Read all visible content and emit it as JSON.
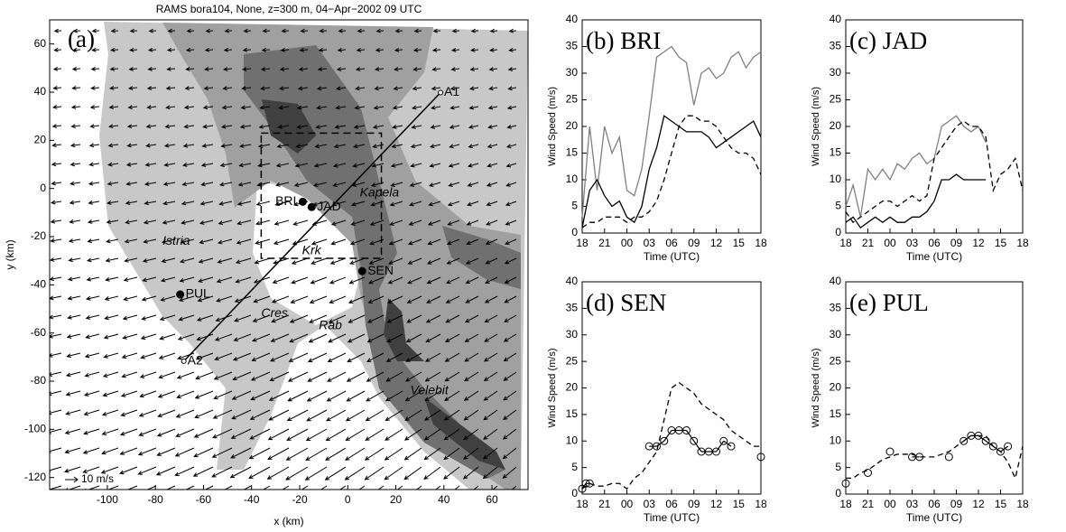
{
  "chart_data": [
    {
      "type": "map",
      "title": "RAMS bora104, None, z=300 m, 04−Apr−2002 09 UTC",
      "panel_label": "(a)",
      "xlabel": "x (km)",
      "ylabel": "y (km)",
      "xlim": [
        -124,
        75
      ],
      "ylim": [
        -125,
        70
      ],
      "xticks": [
        -100,
        -80,
        -60,
        -40,
        -20,
        0,
        20,
        40,
        60
      ],
      "yticks": [
        -120,
        -100,
        -80,
        -60,
        -40,
        -20,
        0,
        20,
        40,
        60
      ],
      "stations": [
        {
          "name": "BRI",
          "x": -18.7,
          "y": -5.5
        },
        {
          "name": "JAD",
          "x": -15,
          "y": -7.7
        },
        {
          "name": "SEN",
          "x": 6,
          "y": -34.3
        },
        {
          "name": "PUL",
          "x": -69.7,
          "y": -44
        }
      ],
      "section": [
        {
          "name": "A1",
          "x": 38.6,
          "y": 39.8
        },
        {
          "name": "A2",
          "x": -68.2,
          "y": -71.7
        }
      ],
      "place_labels": [
        {
          "text": "Istria",
          "x": -77,
          "y": -22
        },
        {
          "text": "Kapela",
          "x": 5,
          "y": -2
        },
        {
          "text": "Krk",
          "x": -19,
          "y": -26
        },
        {
          "text": "Cres",
          "x": -36,
          "y": -52
        },
        {
          "text": "Rab",
          "x": -12,
          "y": -57
        },
        {
          "text": "Velebit",
          "x": 26,
          "y": -84
        }
      ],
      "box": {
        "xlim": [
          -36,
          14
        ],
        "ylim": [
          -29,
          23
        ]
      },
      "vector_key": "10 m/s"
    },
    {
      "type": "line",
      "panel_label": "(b) BRI",
      "xlabel": "Time (UTC)",
      "ylabel": "Wind Speed (m/s)",
      "xlim": [
        0,
        24
      ],
      "ylim": [
        0,
        40
      ],
      "xticks": [
        {
          "value": 0,
          "label": "18"
        },
        {
          "value": 3,
          "label": "21"
        },
        {
          "value": 6,
          "label": "00"
        },
        {
          "value": 9,
          "label": "03"
        },
        {
          "value": 12,
          "label": "06"
        },
        {
          "value": 15,
          "label": "09"
        },
        {
          "value": 18,
          "label": "12"
        },
        {
          "value": 21,
          "label": "15"
        },
        {
          "value": 24,
          "label": "18"
        }
      ],
      "yticks": [
        0,
        5,
        10,
        15,
        20,
        25,
        30,
        35,
        40
      ],
      "x": [
        0,
        1,
        2,
        3,
        4,
        5,
        6,
        7,
        8,
        9,
        10,
        11,
        12,
        13,
        14,
        15,
        16,
        17,
        18,
        19,
        20,
        21,
        22,
        23,
        24
      ],
      "series": [
        {
          "color": "#808080",
          "style": "solid",
          "values": [
            3,
            20,
            8,
            20,
            15,
            18,
            8,
            7,
            12,
            22,
            33,
            34,
            35,
            33,
            32,
            24,
            30,
            31,
            29,
            30,
            33,
            34,
            31,
            33,
            34
          ]
        },
        {
          "color": "#000000",
          "style": "solid",
          "values": [
            1,
            8,
            10,
            7,
            5,
            6,
            3,
            2,
            5,
            12,
            16,
            22,
            21,
            20,
            19,
            19,
            19,
            18,
            16,
            17,
            18,
            19,
            20,
            21,
            18
          ]
        },
        {
          "color": "#000000",
          "style": "dashed",
          "values": [
            1,
            2,
            2,
            3,
            3,
            3,
            2,
            3,
            3,
            4,
            6,
            10,
            15,
            20,
            22,
            22,
            21,
            21,
            20,
            18,
            16,
            15,
            15,
            14,
            11
          ]
        }
      ]
    },
    {
      "type": "line",
      "panel_label": "(c) JAD",
      "xlabel": "Time (UTC)",
      "ylabel": "Wind Speed (m/s)",
      "xlim": [
        0,
        24
      ],
      "ylim": [
        0,
        40
      ],
      "xticks": [
        {
          "value": 0,
          "label": "18"
        },
        {
          "value": 3,
          "label": "21"
        },
        {
          "value": 6,
          "label": "00"
        },
        {
          "value": 9,
          "label": "03"
        },
        {
          "value": 12,
          "label": "06"
        },
        {
          "value": 15,
          "label": "09"
        },
        {
          "value": 18,
          "label": "12"
        },
        {
          "value": 21,
          "label": "15"
        },
        {
          "value": 24,
          "label": "18"
        }
      ],
      "yticks": [
        0,
        5,
        10,
        15,
        20,
        25,
        30,
        35,
        40
      ],
      "x": [
        0,
        1,
        2,
        3,
        4,
        5,
        6,
        7,
        8,
        9,
        10,
        11,
        12,
        13,
        14,
        15,
        16,
        17,
        18,
        19,
        20,
        21,
        22,
        23,
        24
      ],
      "series": [
        {
          "color": "#808080",
          "style": "solid",
          "values": [
            5,
            9,
            3,
            12,
            10,
            12,
            10,
            13,
            12,
            14,
            15,
            13,
            14,
            20,
            21,
            22,
            20,
            19,
            20,
            17,
            null,
            null,
            null,
            null,
            null
          ]
        },
        {
          "color": "#000000",
          "style": "solid",
          "values": [
            2,
            3,
            1,
            2,
            3,
            2,
            3,
            2,
            2,
            3,
            3,
            4,
            6,
            10,
            10,
            11,
            10,
            10,
            10,
            10,
            null,
            null,
            null,
            null,
            null
          ]
        },
        {
          "color": "#000000",
          "style": "dashed",
          "values": [
            4,
            2,
            3,
            4,
            5,
            6,
            6,
            5,
            6,
            7,
            6,
            7,
            14,
            16,
            18,
            20,
            21,
            20,
            20,
            18,
            8,
            11,
            12,
            14,
            8
          ]
        }
      ]
    },
    {
      "type": "line",
      "panel_label": "(d) SEN",
      "xlabel": "Time (UTC)",
      "ylabel": "Wind Speed (m/s)",
      "xlim": [
        0,
        24
      ],
      "ylim": [
        0,
        40
      ],
      "xticks": [
        {
          "value": 0,
          "label": "18"
        },
        {
          "value": 3,
          "label": "21"
        },
        {
          "value": 6,
          "label": "00"
        },
        {
          "value": 9,
          "label": "03"
        },
        {
          "value": 12,
          "label": "06"
        },
        {
          "value": 15,
          "label": "09"
        },
        {
          "value": 18,
          "label": "12"
        },
        {
          "value": 21,
          "label": "15"
        },
        {
          "value": 24,
          "label": "18"
        }
      ],
      "yticks": [
        0,
        5,
        10,
        15,
        20,
        25,
        30,
        35,
        40
      ],
      "x": [
        0,
        1,
        2,
        3,
        4,
        5,
        6,
        7,
        8,
        9,
        10,
        11,
        12,
        13,
        14,
        15,
        16,
        17,
        18,
        19,
        20,
        21,
        22,
        23,
        24
      ],
      "series": [
        {
          "color": "#000000",
          "style": "markers",
          "marker": "circle",
          "x": [
            0,
            0.5,
            1,
            9,
            10,
            11,
            12,
            13,
            14,
            15,
            16,
            17,
            18,
            19,
            20,
            24
          ],
          "values": [
            1,
            2,
            2,
            9,
            9,
            10,
            12,
            12,
            12,
            10,
            8,
            8,
            8,
            10,
            9,
            7
          ]
        },
        {
          "color": "#000000",
          "style": "dashed",
          "values": [
            1,
            2,
            1.5,
            1.5,
            2,
            2,
            1,
            3,
            4,
            6,
            8,
            14,
            20,
            21,
            20,
            19,
            17,
            16,
            15,
            14,
            12,
            11,
            10,
            9,
            9
          ]
        }
      ]
    },
    {
      "type": "line",
      "panel_label": "(e) PUL",
      "xlabel": "Time (UTC)",
      "ylabel": "Wind Speed (m/s)",
      "xlim": [
        0,
        24
      ],
      "ylim": [
        0,
        40
      ],
      "xticks": [
        {
          "value": 0,
          "label": "18"
        },
        {
          "value": 3,
          "label": "21"
        },
        {
          "value": 6,
          "label": "00"
        },
        {
          "value": 9,
          "label": "03"
        },
        {
          "value": 12,
          "label": "06"
        },
        {
          "value": 15,
          "label": "09"
        },
        {
          "value": 18,
          "label": "12"
        },
        {
          "value": 21,
          "label": "15"
        },
        {
          "value": 24,
          "label": "18"
        }
      ],
      "yticks": [
        0,
        5,
        10,
        15,
        20,
        25,
        30,
        35,
        40
      ],
      "x": [
        0,
        1,
        2,
        3,
        4,
        5,
        6,
        7,
        8,
        9,
        10,
        11,
        12,
        13,
        14,
        15,
        16,
        17,
        18,
        19,
        20,
        21,
        22,
        23,
        24
      ],
      "series": [
        {
          "color": "#000000",
          "style": "markers",
          "marker": "circle",
          "x": [
            0,
            3,
            6,
            9,
            10,
            14,
            16,
            17,
            18,
            19,
            20,
            21,
            22
          ],
          "values": [
            2,
            4,
            8,
            7,
            7,
            7,
            10,
            11,
            11,
            10,
            9,
            8,
            9
          ]
        },
        {
          "color": "#000000",
          "style": "dashed",
          "values": [
            3,
            3,
            4,
            4.5,
            5.5,
            6.5,
            7,
            7.5,
            7.5,
            7.5,
            7,
            7,
            7,
            7.5,
            8,
            9,
            10,
            11,
            11,
            11,
            9,
            8,
            6,
            3,
            9
          ]
        }
      ]
    }
  ]
}
